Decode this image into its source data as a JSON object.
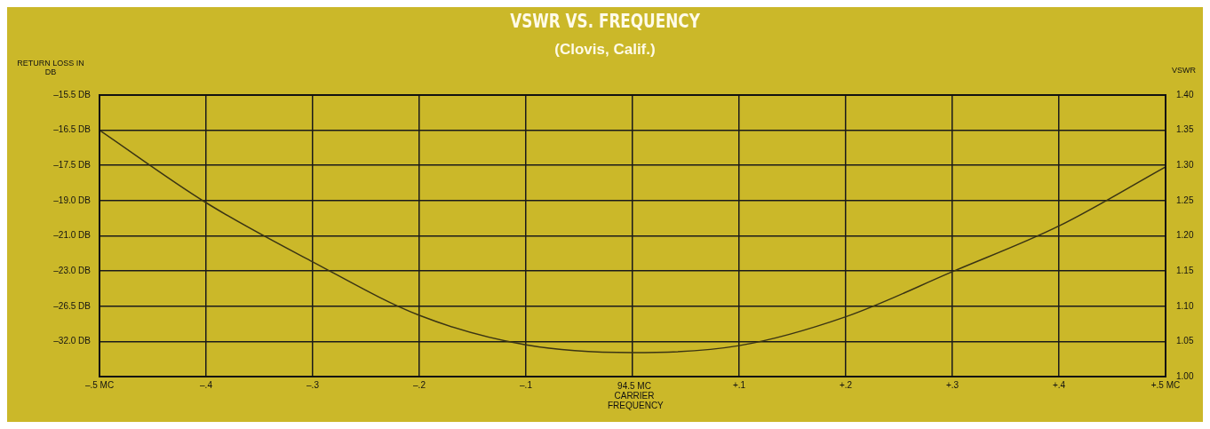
{
  "chart_data": {
    "type": "line",
    "title": "VSWR VS. FREQUENCY",
    "subtitle": "(Clovis, Calif.)",
    "xlabel": "94.5 MC CARRIER FREQUENCY",
    "ylabel": "VSWR",
    "annotations": [
      "RETURN LOSS IN DB",
      "–15.5 DB",
      "–16.5 DB",
      "–17.5 DB",
      "–19.0 DB",
      "–21.0 DB",
      "–23.0 DB",
      "–26.5 DB",
      "–32.0 DB"
    ],
    "x": [
      -0.5,
      -0.4,
      -0.3,
      -0.2,
      -0.1,
      0,
      0.1,
      0.2,
      0.3,
      0.4,
      0.5
    ],
    "series": [
      {
        "color": "#3a3414",
        "values": [
          1.35,
          1.247,
          1.163,
          1.087,
          1.045,
          1.034,
          1.044,
          1.085,
          1.149,
          1.214,
          1.298
        ]
      }
    ],
    "xlim": [
      -0.5,
      0.5
    ],
    "xticks": [
      {
        "value": -0.5,
        "label": "–.5 MC"
      },
      {
        "value": -0.4,
        "label": "–.4"
      },
      {
        "value": -0.3,
        "label": "–.3"
      },
      {
        "value": -0.2,
        "label": "–.2"
      },
      {
        "value": -0.1,
        "label": "–.1"
      },
      {
        "value": 0,
        "label": null
      },
      {
        "value": 0.1,
        "label": "+.1"
      },
      {
        "value": 0.2,
        "label": "+.2"
      },
      {
        "value": 0.3,
        "label": "+.3"
      },
      {
        "value": 0.4,
        "label": "+.4"
      },
      {
        "value": 0.5,
        "label": "+.5 MC"
      }
    ],
    "ylim": [
      1.0,
      1.4
    ],
    "yticks": [
      {
        "value": 1.0,
        "label": "1.00"
      },
      {
        "value": 1.05,
        "label": "1.05"
      },
      {
        "value": 1.1,
        "label": "1.10"
      },
      {
        "value": 1.15,
        "label": "1.15"
      },
      {
        "value": 1.2,
        "label": "1.20"
      },
      {
        "value": 1.25,
        "label": "1.25"
      },
      {
        "value": 1.3,
        "label": "1.30"
      },
      {
        "value": 1.35,
        "label": "1.35"
      },
      {
        "value": 1.4,
        "label": "1.40"
      }
    ],
    "grid": true,
    "marker": "none"
  }
}
